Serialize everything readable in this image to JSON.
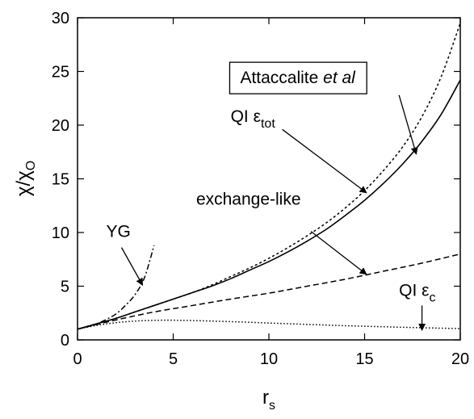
{
  "chart_data": {
    "type": "line",
    "xlabel": "r",
    "xlabel_sub": "s",
    "ylabel": "χ/χ",
    "ylabel_sub": "O",
    "xlim": [
      0,
      20
    ],
    "ylim": [
      0,
      30
    ],
    "xticks": [
      "0",
      "5",
      "10",
      "15",
      "20"
    ],
    "yticks": [
      "0",
      "5",
      "10",
      "15",
      "20",
      "25",
      "30"
    ],
    "grid": false,
    "legend": "none",
    "series": [
      {
        "style": "dashdot",
        "x": [
          0,
          0.5,
          1,
          1.5,
          2,
          2.5,
          3,
          3.5,
          4
        ],
        "y": [
          1.0,
          1.22,
          1.5,
          1.9,
          2.4,
          3.2,
          4.2,
          5.8,
          8.8
        ]
      },
      {
        "style": "solid",
        "x": [
          0,
          1,
          2,
          3,
          4,
          5,
          6,
          7,
          8,
          9,
          10,
          11,
          12,
          13,
          14,
          15,
          16,
          17,
          18,
          19,
          20
        ],
        "y": [
          1.0,
          1.5,
          2.0,
          2.6,
          3.2,
          3.8,
          4.4,
          5.0,
          5.7,
          6.5,
          7.3,
          8.2,
          9.2,
          10.3,
          11.6,
          13.0,
          14.6,
          16.4,
          18.5,
          21.0,
          24.2
        ]
      },
      {
        "style": "dotted-fine",
        "x": [
          0,
          1,
          2,
          3,
          4,
          5,
          6,
          7,
          8,
          9,
          10,
          11,
          12,
          13,
          14,
          15,
          16,
          17,
          18,
          19,
          20
        ],
        "y": [
          1.0,
          1.5,
          2.0,
          2.6,
          3.2,
          3.8,
          4.4,
          5.1,
          5.9,
          6.7,
          7.6,
          8.6,
          9.7,
          10.9,
          12.3,
          13.9,
          15.8,
          18.0,
          20.8,
          24.5,
          29.5
        ]
      },
      {
        "style": "dashed",
        "x": [
          0,
          2,
          4,
          6,
          8,
          10,
          12,
          14,
          16,
          18,
          20
        ],
        "y": [
          1.0,
          1.85,
          2.6,
          3.2,
          3.8,
          4.35,
          5.0,
          5.65,
          6.4,
          7.15,
          8.0
        ]
      },
      {
        "style": "dotted",
        "x": [
          0,
          1,
          2,
          3,
          4,
          5,
          6,
          8,
          10,
          12,
          14,
          16,
          18,
          20
        ],
        "y": [
          1.0,
          1.35,
          1.6,
          1.75,
          1.82,
          1.83,
          1.8,
          1.7,
          1.57,
          1.44,
          1.32,
          1.22,
          1.13,
          1.05
        ]
      }
    ],
    "annotations": [
      {
        "text": "YG",
        "text_x": 1.5,
        "text_y": 9.6,
        "arrow_from": [
          2.3,
          8.6
        ],
        "arrow_to": [
          3.4,
          5.1
        ]
      },
      {
        "text": "QI ε",
        "sub": "tot",
        "text_x": 8.0,
        "text_y": 20.3,
        "arrow_from": [
          10.7,
          19.6
        ],
        "arrow_to": [
          15.1,
          13.7
        ]
      },
      {
        "text": "exchange-like",
        "text_x": 6.2,
        "text_y": 12.6,
        "arrow_from": [
          12.2,
          10.1
        ],
        "arrow_to": [
          15.1,
          6.1
        ]
      },
      {
        "text": "QI ε",
        "sub": "c",
        "text_x": 16.8,
        "text_y": 4.1,
        "arrow_from": [
          18.0,
          3.2
        ],
        "arrow_to": [
          18.0,
          0.9
        ]
      },
      {
        "text": "Attaccalite ",
        "italic": "et al",
        "boxed": true,
        "text_x": 8.5,
        "text_y": 23.9,
        "arrow_from": [
          16.8,
          22.8
        ],
        "arrow_to": [
          17.7,
          17.3
        ]
      }
    ]
  }
}
